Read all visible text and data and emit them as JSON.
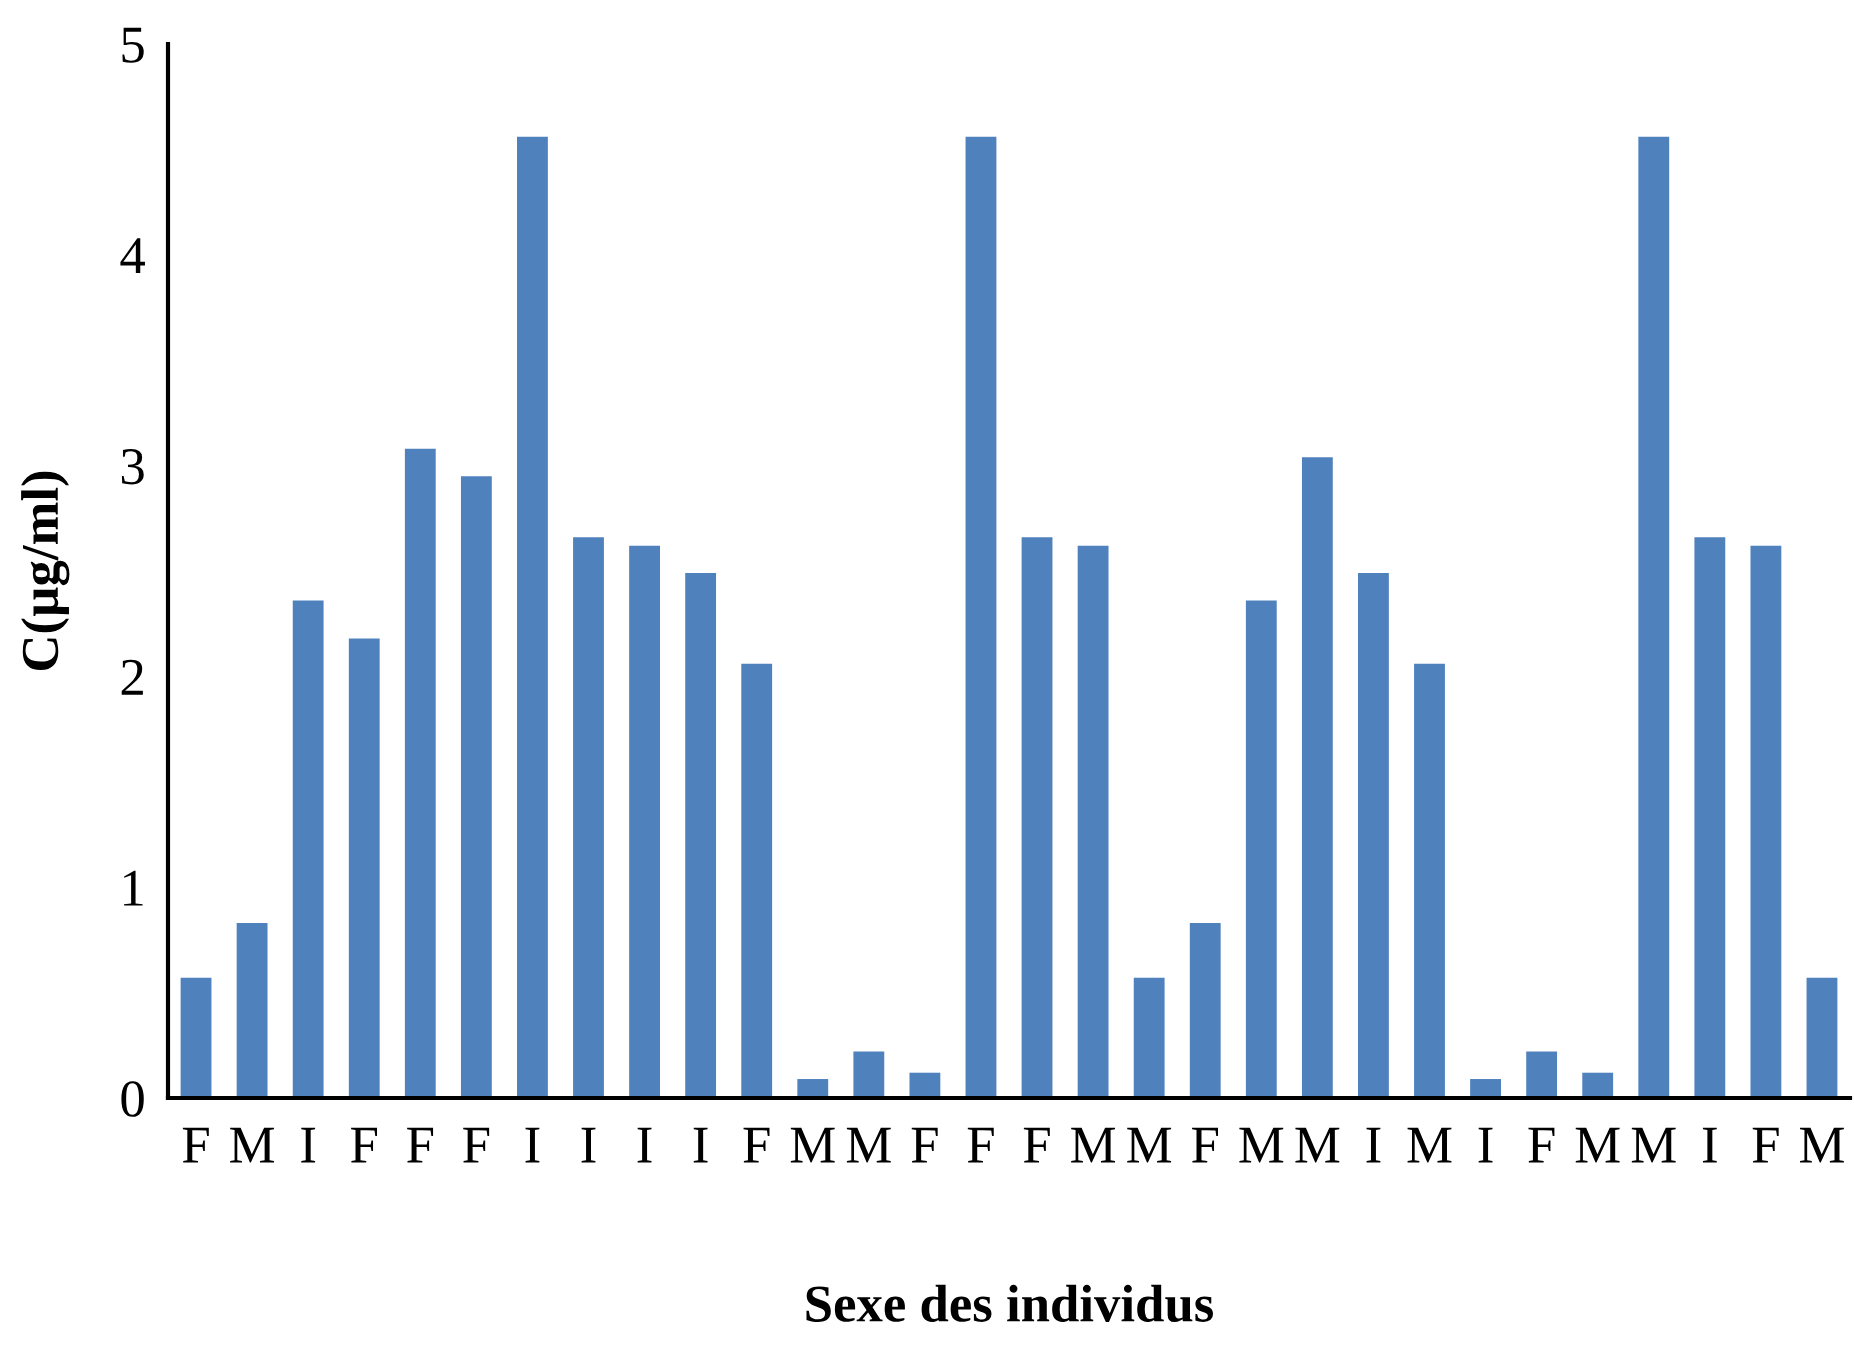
{
  "chart_data": {
    "type": "bar",
    "xlabel": "Sexe des individus",
    "ylabel": "C(µg/ml)",
    "categories": [
      "F",
      "M",
      "I",
      "F",
      "F",
      "F",
      "I",
      "I",
      "I",
      "I",
      "F",
      "M",
      "M",
      "F",
      "F",
      "F",
      "M",
      "M",
      "F",
      "M",
      "M",
      "I",
      "M",
      "I",
      "F",
      "M",
      "M",
      "I",
      "F",
      "M"
    ],
    "series": [
      {
        "color": "#4f81bd",
        "values": [
          0.57,
          0.83,
          2.36,
          2.18,
          3.08,
          2.95,
          4.56,
          2.66,
          2.62,
          2.49,
          2.06,
          0.09,
          0.22,
          0.12,
          4.56,
          2.66,
          2.62,
          0.57,
          0.83,
          2.36,
          3.04,
          2.49,
          2.06,
          0.09,
          0.22,
          0.12,
          4.56,
          2.66,
          2.62,
          0.57
        ]
      }
    ],
    "ylim": [
      0,
      5
    ],
    "yticks": [
      0,
      1,
      2,
      3,
      4,
      5
    ],
    "grid": false,
    "legend": false
  }
}
